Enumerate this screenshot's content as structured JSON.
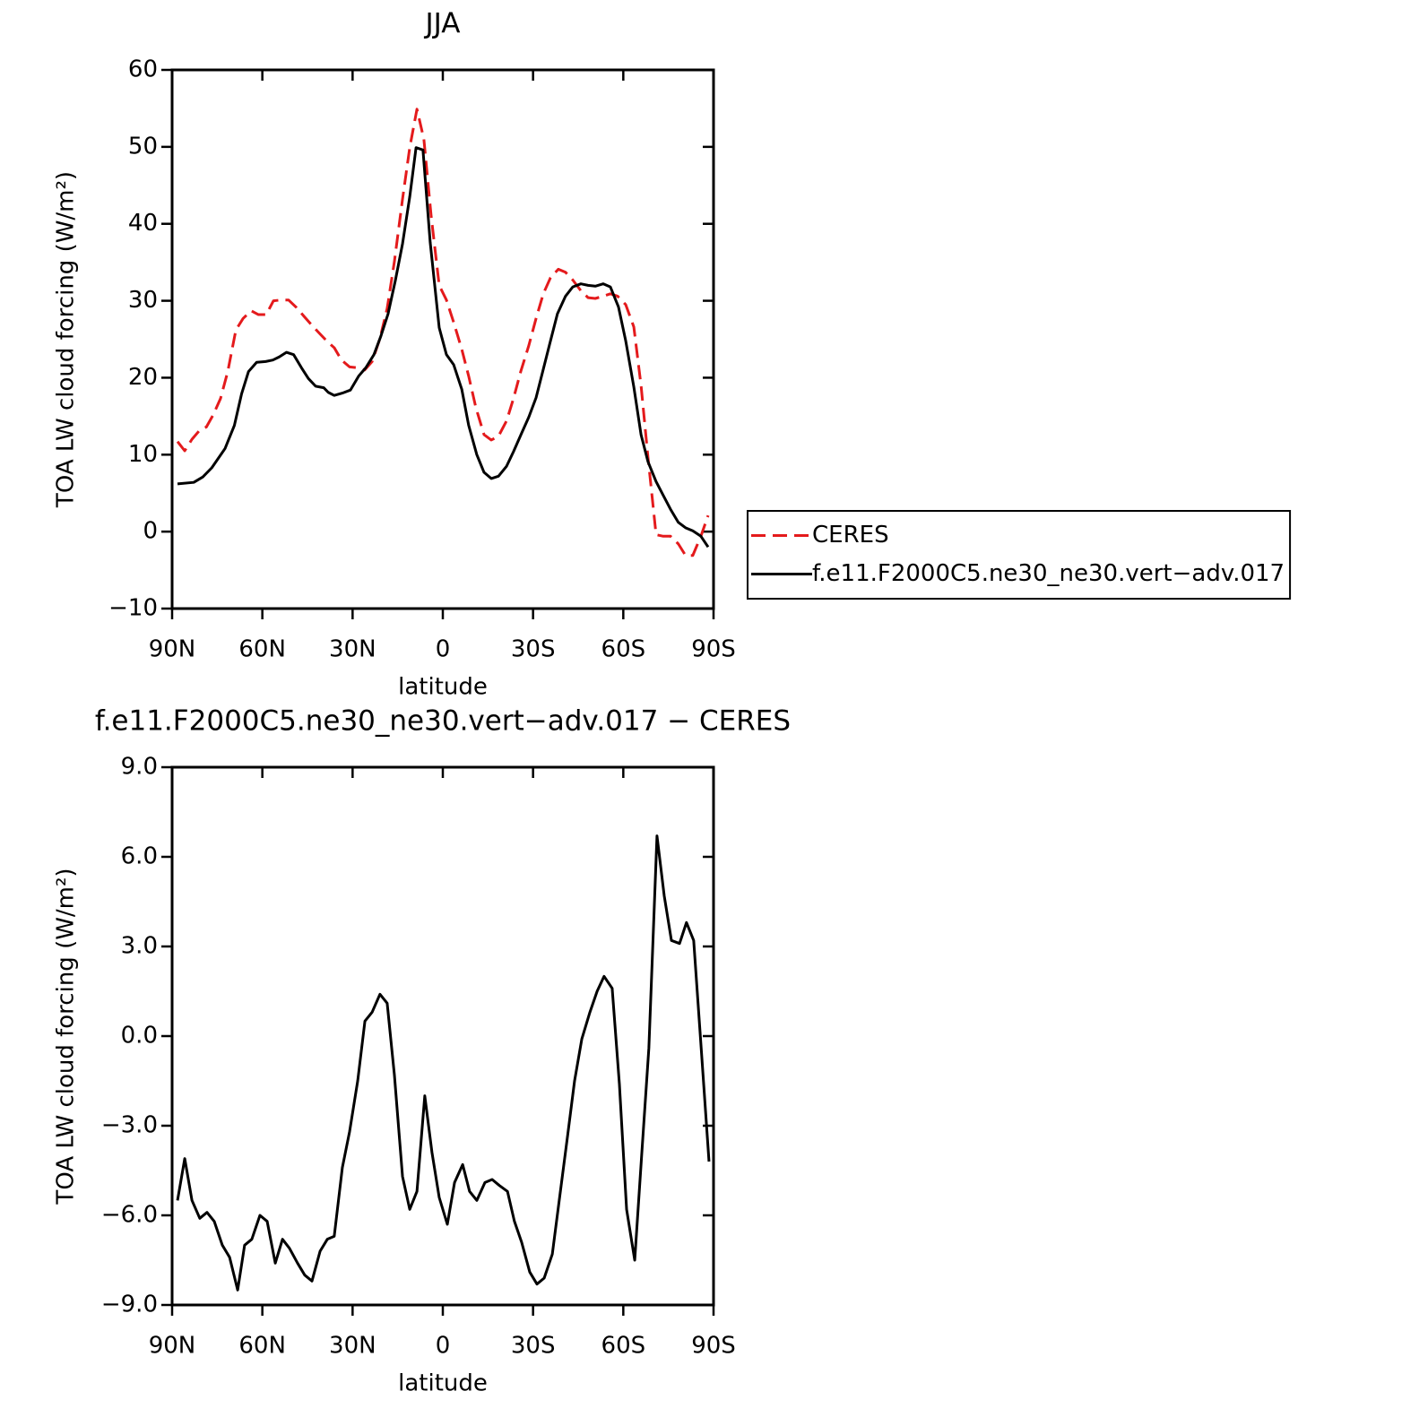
{
  "chart_data": [
    {
      "type": "line",
      "title": "JJA",
      "x_label": "latitude",
      "y_label": "TOA LW cloud forcing (W/m²)",
      "xlim": [
        90,
        -90
      ],
      "xticks": [
        {
          "value": 90,
          "label": "90N"
        },
        {
          "value": 60,
          "label": "60N"
        },
        {
          "value": 30,
          "label": "30N"
        },
        0,
        {
          "value": -30,
          "label": "30S"
        },
        {
          "value": -60,
          "label": "60S"
        },
        {
          "value": -90,
          "label": "90S"
        }
      ],
      "ylim": [
        -10,
        60
      ],
      "yticks": [
        {
          "value": -10,
          "label": "−10"
        },
        0,
        10,
        20,
        30,
        40,
        50,
        60
      ],
      "legend_position": "right",
      "series": [
        {
          "name": "CERES",
          "color": "#e41a1c",
          "line_style": "dashed",
          "x": [
            88.2,
            85.8,
            83.4,
            81,
            78.6,
            76.3,
            73.9,
            71.5,
            68.8,
            66.4,
            63.7,
            61.3,
            58.7,
            56.3,
            53.6,
            51.3,
            48.6,
            46.2,
            43.5,
            41.1,
            38.4,
            36.1,
            33.7,
            31,
            28.6,
            26,
            23.5,
            20.9,
            18.5,
            16.1,
            13.4,
            11,
            8.6,
            6.3,
            3.9,
            1.2,
            -1.2,
            -3.6,
            -6.3,
            -8.6,
            -11,
            -13.7,
            -16.1,
            -18.5,
            -21.2,
            -23.5,
            -25.9,
            -28.6,
            -31,
            -33.4,
            -35.8,
            -38.4,
            -40.8,
            -43.2,
            -45.9,
            -48.3,
            -50.7,
            -53.3,
            -55.7,
            -58.1,
            -60.8,
            -63.5,
            -65.9,
            -68.2,
            -70.9,
            -73.3,
            -75.7,
            -78.3,
            -80.7,
            -83.1,
            -85.8,
            -88.2
          ],
          "values": [
            11.7,
            10.5,
            12,
            13.1,
            13.6,
            15.2,
            17.3,
            20.8,
            26.2,
            27.7,
            28.7,
            28.2,
            28.2,
            30,
            30.1,
            30.1,
            29.1,
            28,
            26.8,
            25.8,
            24.7,
            23.9,
            22.3,
            21.4,
            21.3,
            21,
            22.1,
            25.1,
            29,
            35.1,
            43.2,
            49.9,
            54.9,
            51,
            41.1,
            32,
            30.1,
            27.2,
            23.7,
            20.2,
            16.1,
            12.6,
            11.9,
            12.4,
            14.4,
            17.3,
            20.8,
            24.2,
            27.7,
            30.9,
            33,
            34.1,
            33.7,
            32.7,
            31.3,
            30.4,
            30.3,
            30.6,
            30.9,
            30.6,
            29.5,
            26.6,
            19,
            9.7,
            -0.4,
            -0.6,
            -0.6,
            -1.6,
            -3.1,
            -3.1,
            -0.6,
            2.1
          ]
        },
        {
          "name": "f.e11.F2000C5.ne30_ne30.vert−adv.017",
          "color": "#000000",
          "line_style": "solid",
          "x": [
            88.2,
            82.8,
            79.8,
            76.8,
            72.4,
            69.3,
            66.9,
            64.6,
            61.9,
            58.9,
            56.5,
            54.4,
            52,
            49.6,
            47,
            44.7,
            42.3,
            39.6,
            38.1,
            36.1,
            33.4,
            30.7,
            28,
            25.6,
            22.9,
            20.6,
            18.2,
            15.8,
            13.4,
            11,
            8.9,
            6.6,
            4.2,
            1.2,
            -1.2,
            -3.6,
            -6.3,
            -8.6,
            -11.3,
            -13.7,
            -16.1,
            -18.5,
            -21.2,
            -23.5,
            -26.2,
            -28.6,
            -31,
            -33.4,
            -35.8,
            -38.1,
            -40.8,
            -43.2,
            -45.9,
            -48.3,
            -50.7,
            -53.3,
            -55.7,
            -58.4,
            -60.8,
            -63.5,
            -65.9,
            -68.2,
            -70.9,
            -73.3,
            -75.7,
            -78.3,
            -80.7,
            -83.1,
            -85.8,
            -88.2
          ],
          "values": [
            6.2,
            6.4,
            7.1,
            8.3,
            10.8,
            13.8,
            17.9,
            20.8,
            22,
            22.1,
            22.3,
            22.7,
            23.3,
            23,
            21.3,
            19.9,
            18.9,
            18.7,
            18.1,
            17.7,
            18,
            18.4,
            20.2,
            21.3,
            23,
            25.4,
            28.3,
            32.6,
            37.4,
            43.5,
            49.9,
            49.6,
            37.6,
            26.5,
            23,
            21.7,
            18.5,
            13.8,
            10,
            7.7,
            6.9,
            7.2,
            8.5,
            10.4,
            12.8,
            14.9,
            17.4,
            21.1,
            24.8,
            28.3,
            30.6,
            31.8,
            32.2,
            32,
            31.9,
            32.2,
            31.8,
            29.2,
            24.8,
            18.8,
            12.6,
            9.1,
            6.5,
            4.7,
            2.9,
            1.2,
            0.5,
            0.1,
            -0.6,
            -2
          ]
        }
      ]
    },
    {
      "type": "line",
      "title": "f.e11.F2000C5.ne30_ne30.vert−adv.017 − CERES",
      "x_label": "latitude",
      "y_label": "TOA LW cloud forcing (W/m²)",
      "xlim": [
        90,
        -90
      ],
      "xticks": [
        {
          "value": 90,
          "label": "90N"
        },
        {
          "value": 60,
          "label": "60N"
        },
        {
          "value": 30,
          "label": "30N"
        },
        0,
        {
          "value": -30,
          "label": "30S"
        },
        {
          "value": -60,
          "label": "60S"
        },
        {
          "value": -90,
          "label": "90S"
        }
      ],
      "ylim": [
        -9,
        9
      ],
      "yticks": [
        {
          "value": -9,
          "label": "−9.0"
        },
        {
          "value": -6,
          "label": "−6.0"
        },
        {
          "value": -3,
          "label": "−3.0"
        },
        {
          "value": 0,
          "label": "0.0"
        },
        {
          "value": 3,
          "label": "3.0"
        },
        {
          "value": 6,
          "label": "6.0"
        },
        {
          "value": 9,
          "label": "9.0"
        }
      ],
      "series": [
        {
          "color": "#000000",
          "line_style": "solid",
          "x": [
            88.2,
            85.8,
            83.4,
            80.8,
            78.4,
            76,
            73.3,
            70.9,
            68.2,
            65.9,
            63.5,
            60.8,
            58.4,
            55.7,
            53.3,
            51,
            48.3,
            45.9,
            43.5,
            40.8,
            38.4,
            36.1,
            33.4,
            31,
            28.3,
            25.9,
            23.5,
            20.9,
            18.5,
            16.1,
            13.4,
            11,
            8.6,
            6,
            3.6,
            1.2,
            -1.5,
            -3.9,
            -6.6,
            -8.9,
            -11.3,
            -14,
            -16.4,
            -18.8,
            -21.5,
            -23.8,
            -26.2,
            -28.9,
            -31.3,
            -33.7,
            -36.4,
            -38.7,
            -41.4,
            -43.8,
            -46.2,
            -48.9,
            -51.3,
            -53.6,
            -56.3,
            -58.7,
            -61.1,
            -63.8,
            -66.1,
            -68.5,
            -71.2,
            -73.6,
            -76,
            -78.7,
            -81,
            -83.4,
            -86.1,
            -88.5
          ],
          "values": [
            -5.5,
            -4.1,
            -5.5,
            -6.1,
            -5.9,
            -6.2,
            -7,
            -7.4,
            -8.5,
            -7,
            -6.8,
            -6,
            -6.2,
            -7.6,
            -6.8,
            -7.1,
            -7.6,
            -8,
            -8.2,
            -7.2,
            -6.8,
            -6.7,
            -4.4,
            -3.2,
            -1.5,
            0.5,
            0.8,
            1.4,
            1.1,
            -1.3,
            -4.7,
            -5.8,
            -5.2,
            -2,
            -3.9,
            -5.4,
            -6.3,
            -4.9,
            -4.3,
            -5.2,
            -5.5,
            -4.9,
            -4.8,
            -5,
            -5.2,
            -6.2,
            -6.9,
            -7.9,
            -8.3,
            -8.1,
            -7.3,
            -5.5,
            -3.4,
            -1.5,
            -0.1,
            0.8,
            1.5,
            2,
            1.6,
            -1.6,
            -5.8,
            -7.5,
            -4,
            -0.4,
            6.7,
            4.7,
            3.2,
            3.1,
            3.8,
            3.2,
            -0.7,
            -4.2
          ]
        }
      ]
    }
  ]
}
